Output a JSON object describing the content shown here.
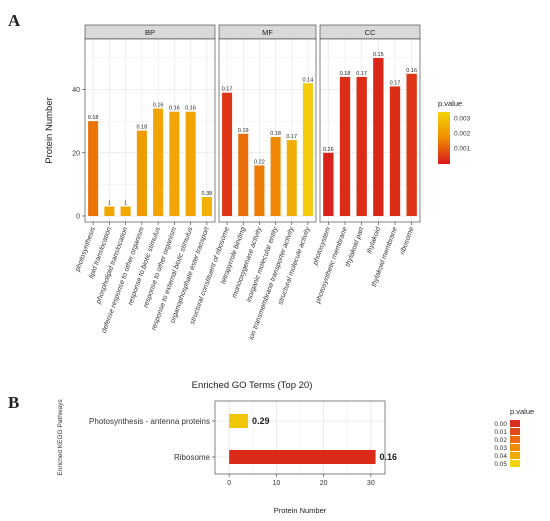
{
  "panel_a_letter": "A",
  "panel_b_letter": "B",
  "chart_data": [
    {
      "type": "bar",
      "xlabel": "Enriched GO Terms (Top 20)",
      "ylabel": "Protein Number",
      "ylim": [
        0,
        56
      ],
      "yticks": [
        0,
        20,
        40
      ],
      "grid": true,
      "legend": {
        "title": "p.value",
        "placement": "right",
        "ticks": [
          "0.003",
          "0.002",
          "0.001"
        ]
      },
      "facets": [
        {
          "name": "BP",
          "categories": [
            "photosynthesis",
            "lipid translocation",
            "phospholipid translocation",
            "defense response to other organism",
            "response to biotic stimulus",
            "response to other organism",
            "response to external biotic stimulus",
            "organophosphate ester transport"
          ],
          "values": [
            30,
            3,
            3,
            27,
            34,
            33,
            33,
            6
          ],
          "labels": [
            "0.18",
            "1",
            "1",
            "0.18",
            "0.16",
            "0.16",
            "0.16",
            "0.38"
          ],
          "pvalues": [
            0.0015,
            0.0025,
            0.0025,
            0.0022,
            0.0024,
            0.0024,
            0.0024,
            0.0027
          ]
        },
        {
          "name": "MF",
          "categories": [
            "structural constituent of ribosome",
            "tetrapyrrole binding",
            "monooxygenase activity",
            "inorganic molecular entity",
            "ion transmembrane transporter activity",
            "structural molecule activity"
          ],
          "values": [
            39,
            26,
            16,
            25,
            24,
            42
          ],
          "labels": [
            "0.17",
            "0.19",
            "0.22",
            "0.18",
            "0.17",
            "0.14"
          ],
          "pvalues": [
            0.0006,
            0.0014,
            0.0016,
            0.0018,
            0.0026,
            0.0033
          ]
        },
        {
          "name": "CC",
          "categories": [
            "photosystem",
            "photosynthetic membrane",
            "thylakoid part",
            "thylakoid",
            "thylakoid membrane",
            "ribosome"
          ],
          "values": [
            20,
            44,
            44,
            50,
            41,
            45
          ],
          "labels": [
            "0.26",
            "0.18",
            "0.17",
            "0.15",
            "0.17",
            "0.16"
          ],
          "pvalues": [
            0.0003,
            0.0005,
            0.0005,
            0.0004,
            0.0005,
            0.0006
          ]
        }
      ]
    },
    {
      "type": "bar",
      "orientation": "horizontal",
      "xlabel": "Protein Number",
      "ylabel": "Enriched KEGG Pathways",
      "xlim": [
        -3,
        33
      ],
      "xticks": [
        0,
        10,
        20,
        30
      ],
      "grid": true,
      "categories": [
        "Photosynthesis - antenna proteins",
        "Ribosome"
      ],
      "values": [
        4,
        31
      ],
      "labels": [
        "0.29",
        "0.16"
      ],
      "pvalues": [
        0.045,
        0.004
      ],
      "legend": {
        "title": "p.value",
        "placement": "right",
        "items": [
          "0.00",
          "0.01",
          "0.02",
          "0.03",
          "0.04",
          "0.05"
        ]
      }
    }
  ],
  "colors": {
    "panel_bg": "#ffffff",
    "strip_bg": "#d9d9d9",
    "grid": "#e6e6e6",
    "border": "#333333",
    "gradient_low": "#d7191c",
    "gradient_mid": "#f08c00",
    "gradient_high": "#f2d40a",
    "kegg_legend": [
      "#d7301f",
      "#e34a1b",
      "#ec6a10",
      "#f08c00",
      "#eeaa00",
      "#f2d40a"
    ]
  }
}
